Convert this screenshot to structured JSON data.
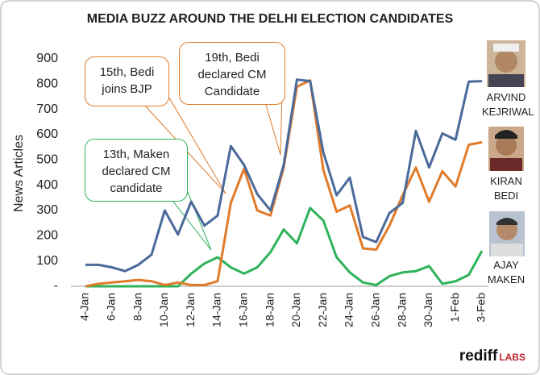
{
  "chart_data": {
    "type": "line",
    "title": "MEDIA BUZZ AROUND THE DELHI ELECTION CANDIDATES",
    "y_label": "News Articles",
    "categories": [
      "4-Jan",
      null,
      "6-Jan",
      null,
      "8-Jan",
      null,
      "10-Jan",
      null,
      "12-Jan",
      null,
      "14-Jan",
      null,
      "16-Jan",
      null,
      "18-Jan",
      null,
      "20-Jan",
      null,
      "22-Jan",
      null,
      "24-Jan",
      null,
      "26-Jan",
      null,
      "28-Jan",
      null,
      "30-Jan",
      null,
      "1-Feb",
      null,
      "3-Feb"
    ],
    "series": [
      {
        "name": "ARVIND KEJRIWAL",
        "color": "#4a6a9b",
        "values": [
          85,
          85,
          75,
          60,
          85,
          125,
          300,
          205,
          335,
          240,
          280,
          555,
          480,
          365,
          300,
          480,
          818,
          812,
          530,
          360,
          430,
          195,
          175,
          290,
          330,
          615,
          470,
          605,
          580,
          810,
          812
        ]
      },
      {
        "name": "KIRAN BEDI",
        "color": "#e07b2a",
        "values": [
          0,
          10,
          15,
          20,
          25,
          20,
          5,
          15,
          5,
          5,
          20,
          330,
          465,
          300,
          280,
          470,
          790,
          815,
          460,
          295,
          320,
          150,
          145,
          240,
          360,
          470,
          335,
          455,
          395,
          560,
          570
        ]
      },
      {
        "name": "AJAY MAKEN",
        "color": "#2eb35a",
        "values": [
          0,
          0,
          0,
          0,
          0,
          0,
          0,
          0,
          50,
          90,
          115,
          75,
          50,
          75,
          135,
          225,
          170,
          310,
          260,
          115,
          55,
          15,
          5,
          40,
          55,
          60,
          80,
          10,
          20,
          45,
          140
        ]
      }
    ],
    "ylim": [
      0,
      900
    ],
    "yticks": [
      {
        "value": 0,
        "label": "-"
      },
      100,
      200,
      300,
      400,
      500,
      600,
      700,
      800,
      900
    ],
    "grid": false,
    "annotations": [
      {
        "text": "15th, Bedi joins BJP",
        "color": "#e07b2a"
      },
      {
        "text": "19th, Bedi declared CM Candidate",
        "color": "#e07b2a"
      },
      {
        "text": "13th, Maken declared CM candidate",
        "color": "#2eb35a"
      }
    ],
    "logo": {
      "brand": "rediff",
      "sub": "LABS"
    }
  }
}
